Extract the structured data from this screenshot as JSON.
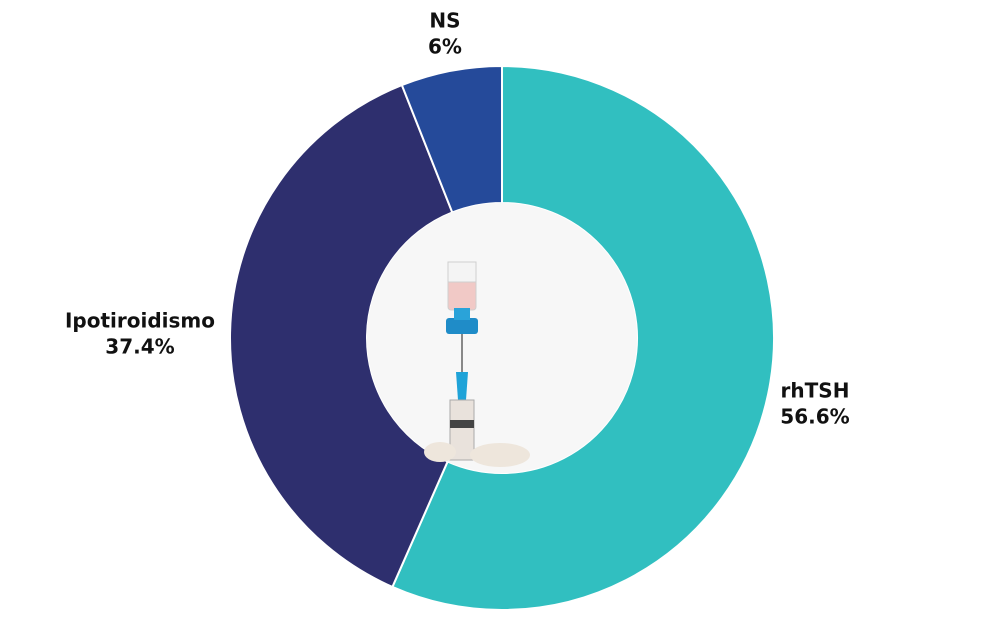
{
  "chart_data": {
    "type": "donut",
    "categories": [
      "rhTSH",
      "Ipotiroidismo",
      "NS"
    ],
    "values": [
      56.6,
      37.4,
      6
    ],
    "value_labels": [
      "56.6%",
      "37.4%",
      "6%"
    ],
    "colors": [
      "#31bfc0",
      "#2e2f6e",
      "#254a9a"
    ]
  }
}
